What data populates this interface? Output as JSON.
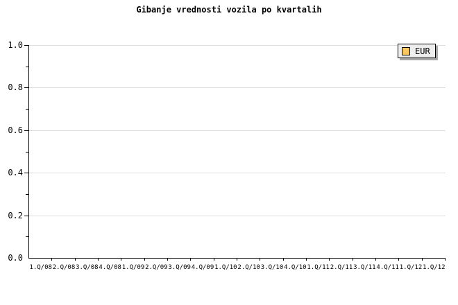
{
  "title": "Gibanje vrednosti vozila po kvartalih",
  "legend": {
    "position": "top-right-inside",
    "items": [
      {
        "label": "EUR",
        "swatch_color": "#FAC763"
      }
    ]
  },
  "colors": {
    "background": "#FFFFFF",
    "text": "#000000",
    "axis": "#000000",
    "gridline": "#DDDDDD",
    "legend-bg": "#EEEEEE",
    "legend-border": "#000000",
    "legend-shadow": "#A8A8A8",
    "swatch": "#FAC763",
    "swatch-border": "#000000"
  },
  "chart_data": {
    "type": "line",
    "title": "Gibanje vrednosti vozila po kvartalih",
    "categories": [
      "1.Q/08",
      "2.Q/08",
      "3.Q/08",
      "4.Q/08",
      "1.Q/09",
      "2.Q/09",
      "3.Q/09",
      "4.Q/09",
      "1.Q/10",
      "2.Q/10",
      "3.Q/10",
      "4.Q/10",
      "1.Q/11",
      "2.Q/11",
      "3.Q/11",
      "4.Q/11",
      "1.Q/12",
      "1.Q/12"
    ],
    "series": [
      {
        "name": "EUR",
        "values": []
      }
    ],
    "xlabel": "",
    "ylabel": "",
    "ylim": [
      0.0,
      1.0
    ],
    "y_major_ticks": [
      0.0,
      0.2,
      0.4,
      0.6,
      0.8,
      1.0
    ],
    "y_major_tick_labels": [
      "0.0",
      "0.2",
      "0.4",
      "0.6",
      "0.8",
      "1.0"
    ],
    "y_minor_ticks": [
      0.1,
      0.3,
      0.5,
      0.7,
      0.9
    ],
    "grid": "horizontal-major",
    "legend_position": "top-right-inside"
  }
}
